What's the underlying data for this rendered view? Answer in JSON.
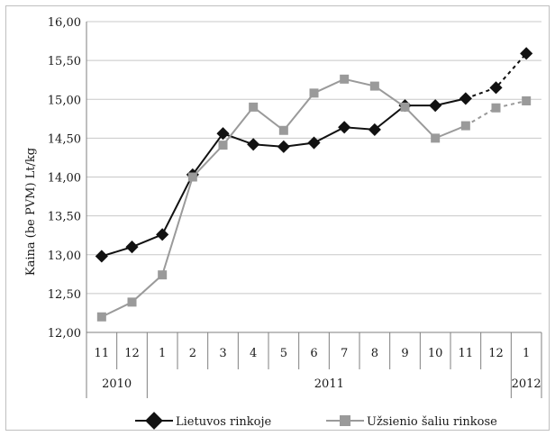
{
  "chart_data": {
    "type": "line",
    "title": "",
    "ylabel": "Kaina (be PVM) Lt/kg",
    "xlabel": "",
    "ylim": [
      12.0,
      16.0
    ],
    "yticks": [
      "12,00",
      "12,50",
      "13,00",
      "13,50",
      "14,00",
      "14,50",
      "15,00",
      "15,50",
      "16,00"
    ],
    "grid": "horizontal",
    "legend_position": "bottom",
    "categories": [
      "11",
      "12",
      "1",
      "2",
      "3",
      "4",
      "5",
      "6",
      "7",
      "8",
      "9",
      "10",
      "11",
      "12",
      "1"
    ],
    "year_groups": [
      {
        "label": "2010",
        "span": 2
      },
      {
        "label": "2011",
        "span": 12
      },
      {
        "label": "2012",
        "span": 1
      }
    ],
    "series": [
      {
        "name": "Lietuvos rinkoje",
        "color": "#111111",
        "marker": "diamond",
        "values": [
          12.98,
          13.1,
          13.26,
          14.03,
          14.56,
          14.42,
          14.39,
          14.44,
          14.64,
          14.61,
          14.92,
          14.92,
          15.01,
          15.15,
          15.59
        ],
        "dashed_from_index": 12
      },
      {
        "name": "Užsienio šaliu rinkose",
        "color": "#9a9a9a",
        "marker": "square",
        "values": [
          12.2,
          12.39,
          12.74,
          14.0,
          14.41,
          14.9,
          14.6,
          15.08,
          15.26,
          15.17,
          14.9,
          14.5,
          14.66,
          14.89,
          14.98
        ],
        "dashed_from_index": 12
      }
    ]
  }
}
